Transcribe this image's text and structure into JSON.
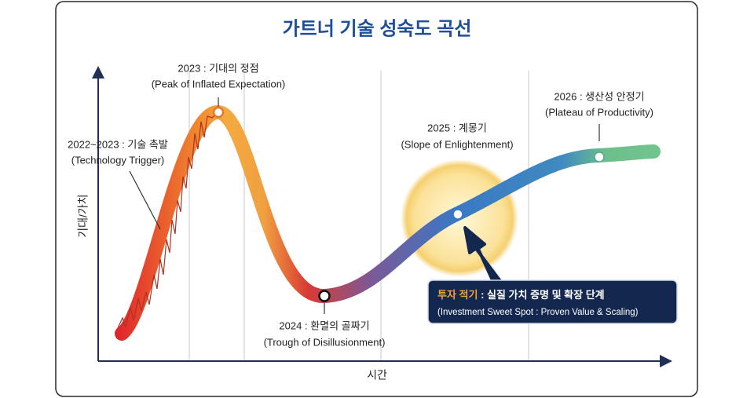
{
  "title": "가트너 기술 성숙도 곡선",
  "axes": {
    "y_label": "기대/가치",
    "x_label": "시간"
  },
  "phases": [
    {
      "label": "2022~2023 : 기술 촉발",
      "english": "(Technology Trigger)"
    },
    {
      "label": "2023 : 기대의 정점",
      "english": "(Peak of Inflated Expectation)"
    },
    {
      "label": "2024 : 환멸의 골짜기",
      "english": "(Trough of Disillusionment)"
    },
    {
      "label": "2025 : 계몽기",
      "english": "(Slope of Enlightenment)"
    },
    {
      "label": "2026 : 생산성 안정기",
      "english": "(Plateau of Productivity)"
    }
  ],
  "callout": {
    "highlight": "투자 적기",
    "text": " : 실질 가치 증명 및 확장 단계",
    "english": "(Investment Sweet Spot : Proven Value & Scaling)"
  }
}
